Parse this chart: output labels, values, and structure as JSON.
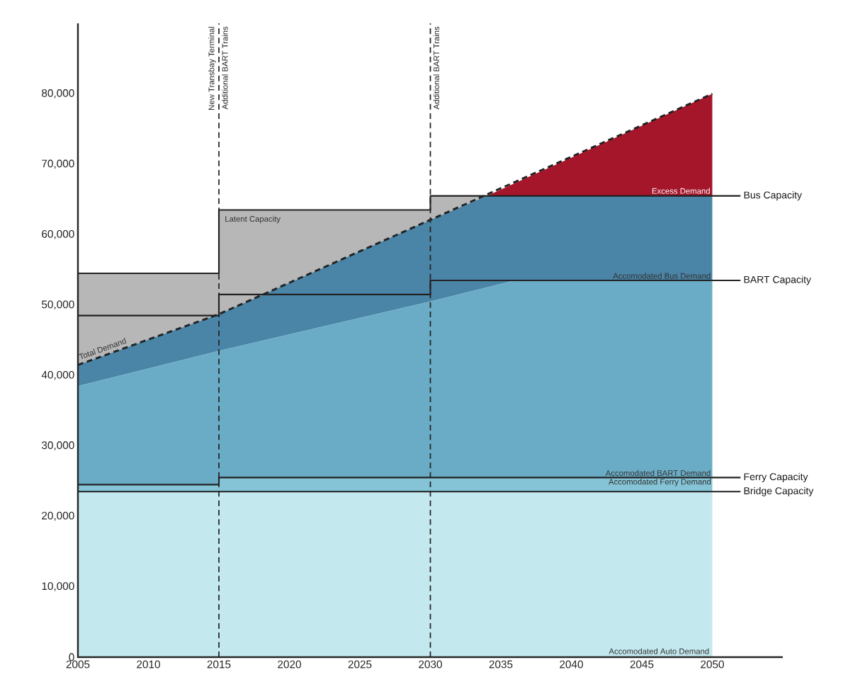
{
  "chart_data": {
    "type": "area",
    "xlim": [
      2005,
      2055
    ],
    "ylim": [
      0,
      90000
    ],
    "xticks": [
      2005,
      2010,
      2015,
      2020,
      2025,
      2030,
      2035,
      2040,
      2045,
      2050
    ],
    "yticks": [
      0,
      {
        "value": 10000,
        "label": "10,000"
      },
      {
        "value": 20000,
        "label": "20,000"
      },
      {
        "value": 30000,
        "label": "30,000"
      },
      {
        "value": 40000,
        "label": "40,000"
      },
      {
        "value": 50000,
        "label": "50,000"
      },
      {
        "value": 60000,
        "label": "60,000"
      },
      {
        "value": 70000,
        "label": "70,000"
      },
      {
        "value": 80000,
        "label": "80,000"
      }
    ],
    "series": [
      {
        "name": "Excess Demand",
        "color": "#a5162a",
        "x": [
          2034,
          2050
        ],
        "values": [
          65500,
          80000
        ]
      },
      {
        "name": "Latent Capacity",
        "color": "#b7b7b7",
        "x": [
          2005,
          2015,
          2015,
          2030,
          2030,
          2050
        ],
        "values": [
          54500,
          54500,
          63500,
          63500,
          65500,
          65500
        ]
      },
      {
        "name": "Accomodated Bus Demand",
        "color": "#4a84a6",
        "x": [
          2005,
          2015,
          2030,
          2034,
          2036,
          2050
        ],
        "values": [
          41500,
          48700,
          62100,
          65500,
          65500,
          65500
        ]
      },
      {
        "name": "Accomodated BART Demand",
        "color": "#6aacc6",
        "x": [
          2005,
          2015,
          2030,
          2036,
          2050
        ],
        "values": [
          38500,
          43500,
          50500,
          53500,
          53500
        ]
      },
      {
        "name": "Accomodated Ferry Demand",
        "color": "#85c4d6",
        "x": [
          2005,
          2015,
          2015,
          2050
        ],
        "values": [
          24500,
          24500,
          25500,
          25500
        ]
      },
      {
        "name": "Accomodated Auto Demand",
        "color": "#c3e9ef",
        "x": [
          2005,
          2050
        ],
        "values": [
          23500,
          23500
        ]
      },
      {
        "name": "Total Demand",
        "type": "line",
        "line_style": "dashed",
        "color": "#222222",
        "x": [
          2005,
          2015,
          2030,
          2050
        ],
        "values": [
          41500,
          48700,
          62100,
          80000
        ]
      },
      {
        "name": "Bus Capacity",
        "type": "line",
        "line_style": "solid",
        "color": "#222222",
        "x": [
          2005,
          2015,
          2015,
          2030,
          2030,
          2052
        ],
        "values": [
          54500,
          54500,
          63500,
          63500,
          65500,
          65500
        ]
      },
      {
        "name": "BART Capacity",
        "type": "line",
        "line_style": "solid",
        "color": "#222222",
        "x": [
          2005,
          2015,
          2015,
          2030,
          2030,
          2052
        ],
        "values": [
          48500,
          48500,
          51500,
          51500,
          53500,
          53500
        ]
      },
      {
        "name": "Ferry Capacity",
        "type": "line",
        "line_style": "solid",
        "color": "#222222",
        "x": [
          2005,
          2015,
          2015,
          2052
        ],
        "values": [
          24500,
          24500,
          25500,
          25500
        ]
      },
      {
        "name": "Bridge Capacity",
        "type": "line",
        "line_style": "solid",
        "color": "#222222",
        "x": [
          2005,
          2052
        ],
        "values": [
          23500,
          23500
        ]
      }
    ],
    "ref_lines": [
      {
        "axis": "x",
        "value": 2015,
        "label": "New Transbay Terminal",
        "line_style": "dashed",
        "color": "#222222"
      },
      {
        "axis": "x",
        "value": 2030,
        "label": "Additional BART Trains",
        "line_style": "dashed",
        "color": "#222222"
      }
    ],
    "annotations": [
      {
        "text": "Additional BART Trains",
        "x": 2015
      }
    ]
  }
}
